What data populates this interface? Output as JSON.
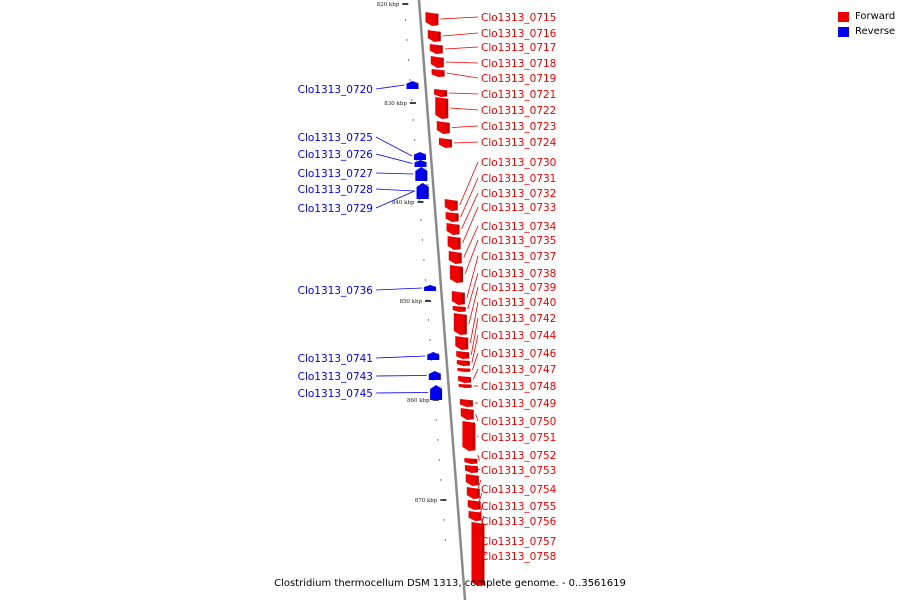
{
  "legend": [
    {
      "label": "Forward",
      "color": "#ff0000"
    },
    {
      "label": "Reverse",
      "color": "#0000ff"
    }
  ],
  "caption": "Clostridium thermocellum DSM 1313, complete genome. - 0..3561619",
  "colors": {
    "forward": "#ee0000",
    "reverse": "#0000ee",
    "axis": "#8a8a8a"
  },
  "ticks": [
    {
      "label": "820 kbp",
      "kbp": 820
    },
    {
      "label": "830 kbp",
      "kbp": 830
    },
    {
      "label": "840 kbp",
      "kbp": 840
    },
    {
      "label": "850 kbp",
      "kbp": 850
    },
    {
      "label": "860 kbp",
      "kbp": 860
    },
    {
      "label": "870 kbp",
      "kbp": 870
    }
  ],
  "genes": [
    {
      "name": "Clo1313_0715",
      "strand": "forward"
    },
    {
      "name": "Clo1313_0716",
      "strand": "forward"
    },
    {
      "name": "Clo1313_0717",
      "strand": "forward"
    },
    {
      "name": "Clo1313_0718",
      "strand": "forward"
    },
    {
      "name": "Clo1313_0719",
      "strand": "forward"
    },
    {
      "name": "Clo1313_0720",
      "strand": "reverse"
    },
    {
      "name": "Clo1313_0721",
      "strand": "forward"
    },
    {
      "name": "Clo1313_0722",
      "strand": "forward"
    },
    {
      "name": "Clo1313_0723",
      "strand": "forward"
    },
    {
      "name": "Clo1313_0724",
      "strand": "forward"
    },
    {
      "name": "Clo1313_0725",
      "strand": "reverse"
    },
    {
      "name": "Clo1313_0726",
      "strand": "reverse"
    },
    {
      "name": "Clo1313_0727",
      "strand": "reverse"
    },
    {
      "name": "Clo1313_0728",
      "strand": "reverse"
    },
    {
      "name": "Clo1313_0729",
      "strand": "reverse"
    },
    {
      "name": "Clo1313_0730",
      "strand": "forward"
    },
    {
      "name": "Clo1313_0731",
      "strand": "forward"
    },
    {
      "name": "Clo1313_0732",
      "strand": "forward"
    },
    {
      "name": "Clo1313_0733",
      "strand": "forward"
    },
    {
      "name": "Clo1313_0734",
      "strand": "forward"
    },
    {
      "name": "Clo1313_0735",
      "strand": "forward"
    },
    {
      "name": "Clo1313_0736",
      "strand": "reverse"
    },
    {
      "name": "Clo1313_0737",
      "strand": "forward"
    },
    {
      "name": "Clo1313_0738",
      "strand": "forward"
    },
    {
      "name": "Clo1313_0739",
      "strand": "forward"
    },
    {
      "name": "Clo1313_0740",
      "strand": "forward"
    },
    {
      "name": "Clo1313_0741",
      "strand": "reverse"
    },
    {
      "name": "Clo1313_0742",
      "strand": "forward"
    },
    {
      "name": "Clo1313_0743",
      "strand": "reverse"
    },
    {
      "name": "Clo1313_0744",
      "strand": "forward"
    },
    {
      "name": "Clo1313_0745",
      "strand": "reverse"
    },
    {
      "name": "Clo1313_0746",
      "strand": "forward"
    },
    {
      "name": "Clo1313_0747",
      "strand": "forward"
    },
    {
      "name": "Clo1313_0748",
      "strand": "forward"
    },
    {
      "name": "Clo1313_0749",
      "strand": "forward"
    },
    {
      "name": "Clo1313_0750",
      "strand": "forward"
    },
    {
      "name": "Clo1313_0751",
      "strand": "forward"
    },
    {
      "name": "Clo1313_0752",
      "strand": "forward"
    },
    {
      "name": "Clo1313_0753",
      "strand": "forward"
    },
    {
      "name": "Clo1313_0754",
      "strand": "forward"
    },
    {
      "name": "Clo1313_0755",
      "strand": "forward"
    },
    {
      "name": "Clo1313_0756",
      "strand": "forward"
    },
    {
      "name": "Clo1313_0757",
      "strand": "forward"
    },
    {
      "name": "Clo1313_0758",
      "strand": "forward"
    }
  ]
}
